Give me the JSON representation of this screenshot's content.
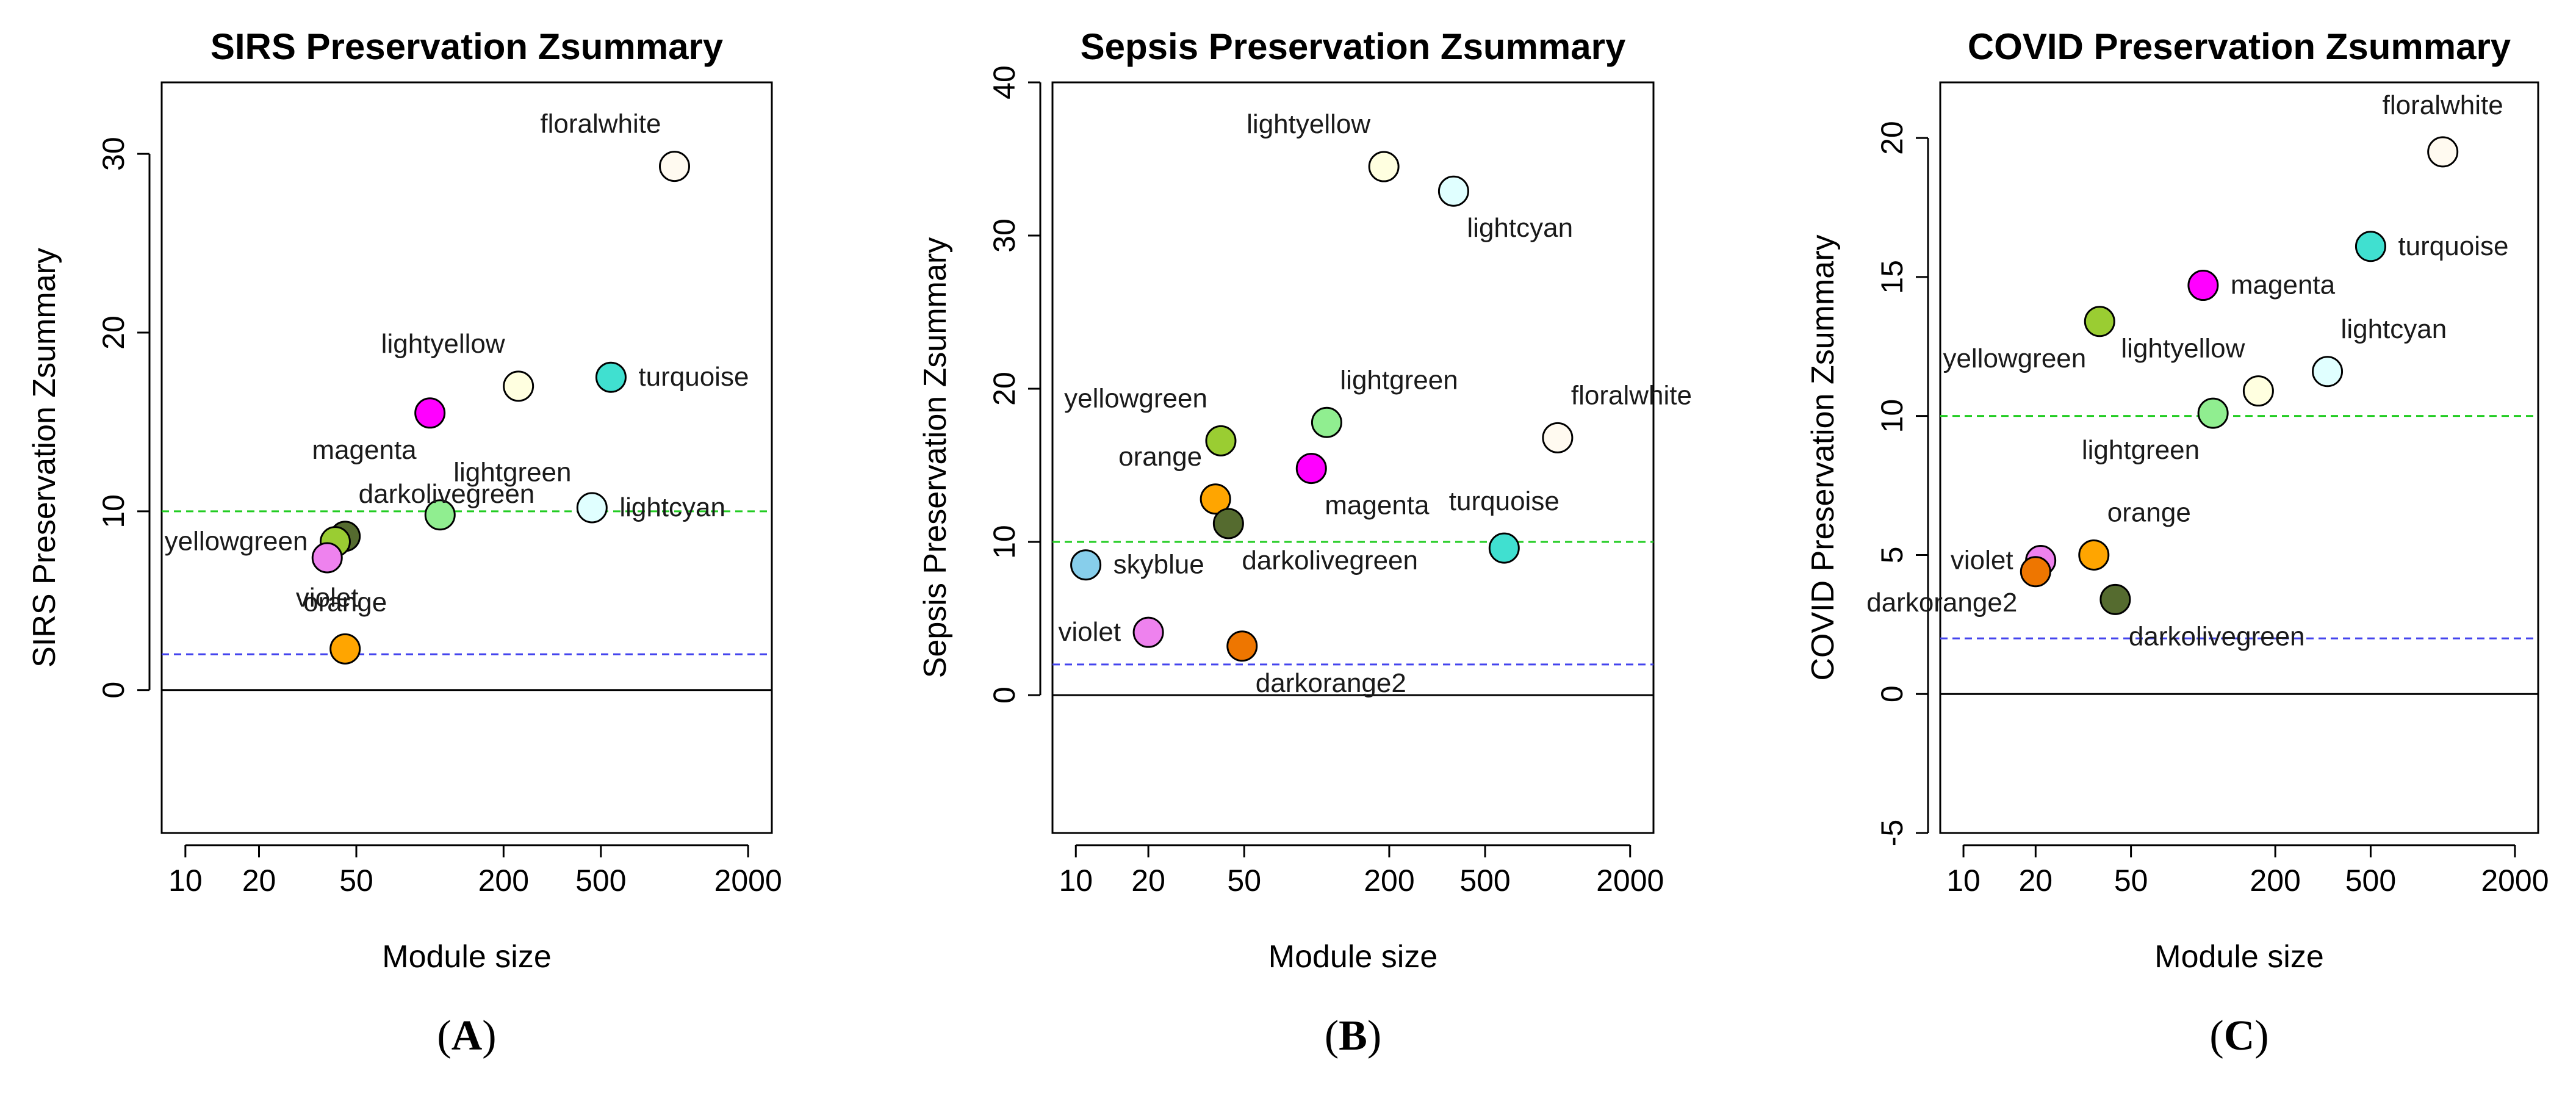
{
  "chart_data": [
    {
      "type": "scatter",
      "panel_label": "(A)",
      "title": "SIRS Preservation Zsummary",
      "xlabel": "Module size",
      "ylabel": "SIRS Preservation Zsummary",
      "x_scale": "log",
      "xlim": [
        8,
        2500
      ],
      "ylim": [
        -8,
        34
      ],
      "x_ticks": [
        10,
        20,
        50,
        200,
        500,
        2000
      ],
      "x_tick_labels": [
        "10",
        "20",
        "50",
        "200",
        "500",
        "2000"
      ],
      "y_ticks": [
        0,
        10,
        20,
        30
      ],
      "y_tick_labels": [
        "0",
        "10",
        "20",
        "30"
      ],
      "ref_lines": [
        {
          "y": 10,
          "color": "#22cc22"
        },
        {
          "y": 2,
          "color": "#4444ee"
        },
        {
          "y": 0,
          "color": "#000000"
        }
      ],
      "points": [
        {
          "label": "floralwhite",
          "size": 1000,
          "z": 29.3,
          "color": "#fffaf0",
          "label_pos": "above-left"
        },
        {
          "label": "lightyellow",
          "size": 230,
          "z": 17.0,
          "color": "#ffffe0",
          "label_pos": "above-left"
        },
        {
          "label": "turquoise",
          "size": 550,
          "z": 17.5,
          "color": "#40e0d0",
          "label_pos": "right"
        },
        {
          "label": "magenta",
          "size": 100,
          "z": 15.5,
          "color": "#ff00ff",
          "label_pos": "below-left"
        },
        {
          "label": "lightgreen",
          "size": 110,
          "z": 9.8,
          "color": "#90ee90",
          "label_pos": "above-right"
        },
        {
          "label": "lightcyan",
          "size": 460,
          "z": 10.2,
          "color": "#e0ffff",
          "label_pos": "right"
        },
        {
          "label": "darkolivegreen",
          "size": 45,
          "z": 8.6,
          "color": "#556b2f",
          "label_pos": "above-right"
        },
        {
          "label": "yellowgreen",
          "size": 41,
          "z": 8.3,
          "color": "#9acd32",
          "label_pos": "left"
        },
        {
          "label": "violet",
          "size": 38,
          "z": 7.4,
          "color": "#ee82ee",
          "label_pos": "below"
        },
        {
          "label": "orange",
          "size": 45,
          "z": 2.3,
          "color": "#ffa500",
          "label_pos": "above"
        }
      ]
    },
    {
      "type": "scatter",
      "panel_label": "(B)",
      "title": "Sepsis Preservation Zsummary",
      "xlabel": "Module size",
      "ylabel": "Sepsis Preservation Zsummary",
      "x_scale": "log",
      "xlim": [
        8,
        2500
      ],
      "ylim": [
        -9,
        40
      ],
      "x_ticks": [
        10,
        20,
        50,
        200,
        500,
        2000
      ],
      "x_tick_labels": [
        "10",
        "20",
        "50",
        "200",
        "500",
        "2000"
      ],
      "y_ticks": [
        0,
        10,
        20,
        30,
        40
      ],
      "y_tick_labels": [
        "0",
        "10",
        "20",
        "30",
        "40"
      ],
      "ref_lines": [
        {
          "y": 10,
          "color": "#22cc22"
        },
        {
          "y": 2,
          "color": "#4444ee"
        },
        {
          "y": 0,
          "color": "#000000"
        }
      ],
      "points": [
        {
          "label": "lightyellow",
          "size": 190,
          "z": 34.5,
          "color": "#ffffe0",
          "label_pos": "above-left"
        },
        {
          "label": "lightcyan",
          "size": 370,
          "z": 32.9,
          "color": "#e0ffff",
          "label_pos": "below-right"
        },
        {
          "label": "floralwhite",
          "size": 1000,
          "z": 16.8,
          "color": "#fffaf0",
          "label_pos": "above-right"
        },
        {
          "label": "lightgreen",
          "size": 110,
          "z": 17.8,
          "color": "#90ee90",
          "label_pos": "above-right"
        },
        {
          "label": "yellowgreen",
          "size": 40,
          "z": 16.6,
          "color": "#9acd32",
          "label_pos": "above-left"
        },
        {
          "label": "magenta",
          "size": 95,
          "z": 14.8,
          "color": "#ff00ff",
          "label_pos": "below-right"
        },
        {
          "label": "orange",
          "size": 38,
          "z": 12.8,
          "color": "#ffa500",
          "label_pos": "above-left"
        },
        {
          "label": "darkolivegreen",
          "size": 43,
          "z": 11.2,
          "color": "#556b2f",
          "label_pos": "below-right"
        },
        {
          "label": "turquoise",
          "size": 600,
          "z": 9.6,
          "color": "#40e0d0",
          "label_pos": "above"
        },
        {
          "label": "skyblue",
          "size": 11,
          "z": 8.5,
          "color": "#87ceeb",
          "label_pos": "right"
        },
        {
          "label": "violet",
          "size": 20,
          "z": 4.1,
          "color": "#ee82ee",
          "label_pos": "left"
        },
        {
          "label": "darkorange2",
          "size": 49,
          "z": 3.2,
          "color": "#ee7600",
          "label_pos": "below-right"
        }
      ]
    },
    {
      "type": "scatter",
      "panel_label": "(C)",
      "title": "COVID Preservation Zsummary",
      "xlabel": "Module size",
      "ylabel": "COVID Preservation Zsummary",
      "x_scale": "log",
      "xlim": [
        8,
        2500
      ],
      "ylim": [
        -5,
        22
      ],
      "x_ticks": [
        10,
        20,
        50,
        200,
        500,
        2000
      ],
      "x_tick_labels": [
        "10",
        "20",
        "50",
        "200",
        "500",
        "2000"
      ],
      "y_ticks": [
        -5,
        0,
        5,
        10,
        15,
        20
      ],
      "y_tick_labels": [
        "-5",
        "0",
        "5",
        "10",
        "15",
        "20"
      ],
      "ref_lines": [
        {
          "y": 10,
          "color": "#22cc22"
        },
        {
          "y": 2,
          "color": "#4444ee"
        },
        {
          "y": 0,
          "color": "#000000"
        }
      ],
      "points": [
        {
          "label": "floralwhite",
          "size": 1000,
          "z": 19.5,
          "color": "#fffaf0",
          "label_pos": "above"
        },
        {
          "label": "turquoise",
          "size": 500,
          "z": 16.1,
          "color": "#40e0d0",
          "label_pos": "right"
        },
        {
          "label": "magenta",
          "size": 100,
          "z": 14.7,
          "color": "#ff00ff",
          "label_pos": "right"
        },
        {
          "label": "yellowgreen",
          "size": 37,
          "z": 13.4,
          "color": "#9acd32",
          "label_pos": "below-left"
        },
        {
          "label": "lightcyan",
          "size": 330,
          "z": 11.6,
          "color": "#e0ffff",
          "label_pos": "above-right"
        },
        {
          "label": "lightyellow",
          "size": 170,
          "z": 10.9,
          "color": "#ffffe0",
          "label_pos": "above-left"
        },
        {
          "label": "lightgreen",
          "size": 110,
          "z": 10.1,
          "color": "#90ee90",
          "label_pos": "below-left"
        },
        {
          "label": "orange",
          "size": 35,
          "z": 5.0,
          "color": "#ffa500",
          "label_pos": "above-right"
        },
        {
          "label": "violet",
          "size": 21,
          "z": 4.8,
          "color": "#ee82ee",
          "label_pos": "left"
        },
        {
          "label": "darkorange2",
          "size": 20,
          "z": 4.4,
          "color": "#ee7600",
          "label_pos": "below-left-hidden"
        },
        {
          "label": "darkolivegreen",
          "size": 43,
          "z": 3.4,
          "color": "#556b2f",
          "label_pos": "below-right"
        }
      ]
    }
  ]
}
